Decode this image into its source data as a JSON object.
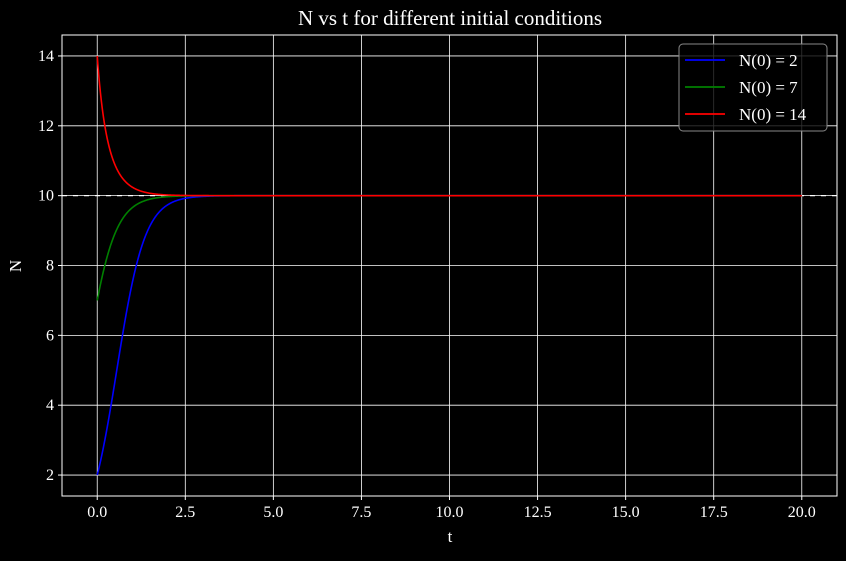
{
  "chart_data": {
    "type": "line",
    "title": "N vs t for different initial conditions",
    "xlabel": "t",
    "ylabel": "N",
    "xlim": [
      -1,
      21
    ],
    "ylim": [
      1.4,
      14.6
    ],
    "xticks": [
      0,
      2.5,
      5,
      7.5,
      10,
      12.5,
      15,
      17.5,
      20
    ],
    "xtick_labels": [
      "0.0",
      "2.5",
      "5.0",
      "7.5",
      "10.0",
      "12.5",
      "15.0",
      "17.5",
      "20.0"
    ],
    "yticks": [
      2,
      4,
      6,
      8,
      10,
      12,
      14
    ],
    "ytick_labels": [
      "2",
      "4",
      "6",
      "8",
      "10",
      "12",
      "14"
    ],
    "grid": true,
    "legend_position": "top-right",
    "background": "#000000",
    "model": {
      "form": "logistic",
      "K": 10,
      "r": 2.5,
      "t_range": [
        0,
        20
      ]
    },
    "reference_line": {
      "y": 10,
      "style": "dashed",
      "color": "#ffffff"
    },
    "series": [
      {
        "name": "N(0) = 2",
        "N0": 2,
        "color": "#0000ff"
      },
      {
        "name": "N(0) = 7",
        "N0": 7,
        "color": "#008000"
      },
      {
        "name": "N(0) = 14",
        "N0": 14,
        "color": "#ff0000"
      }
    ]
  }
}
